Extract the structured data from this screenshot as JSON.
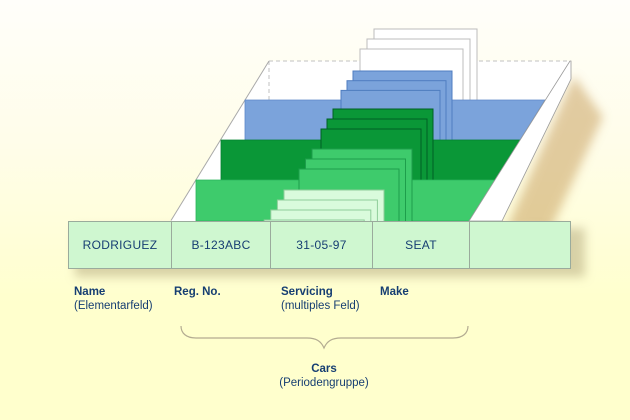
{
  "record": {
    "cells": [
      {
        "value": "RODRIGUEZ"
      },
      {
        "value": "B-123ABC"
      },
      {
        "value": "31-05-97"
      },
      {
        "value": "SEAT"
      },
      {
        "value": ""
      }
    ]
  },
  "field_labels": [
    {
      "title": "Name",
      "subtitle": "(Elementarfeld)"
    },
    {
      "title": "Reg. No.",
      "subtitle": ""
    },
    {
      "title": "Servicing",
      "subtitle": "(multiples Feld)"
    },
    {
      "title": "Make",
      "subtitle": ""
    }
  ],
  "group_label": {
    "title": "Cars",
    "subtitle": "(Periodengruppe)"
  },
  "colors": {
    "text": "#163e72",
    "record_fill": "#cff7d0",
    "record_border": "#9aab9c",
    "background_top": "#fffefa",
    "background_bottom": "#ffffcd",
    "tray_floor": "#ffffff",
    "tray_line": "#a9a9a9",
    "tray_dash": "#c2c2c2",
    "wall_fill": "#ffffff",
    "wall_stroke": "#9b9b9b",
    "wall_shadow": "#c49a55",
    "table_shadow": "#b0a478",
    "brace": "#b3ab91"
  },
  "diagram": {
    "stacks": [
      {
        "id": "white-cards",
        "cards": 3,
        "fill": "#ffffff",
        "stroke": "#bcbcbc"
      },
      {
        "id": "blue-cards",
        "cards": 3,
        "fill": "#7ba3db",
        "stroke": "#4f7dc0",
        "band": true,
        "band_stroke": "#5d88c9"
      },
      {
        "id": "dark-green-cards",
        "cards": 3,
        "fill": "#0a9737",
        "stroke": "#005f24",
        "band": true,
        "band_stroke": "#038231"
      },
      {
        "id": "mid-green-cards",
        "cards": 3,
        "fill": "#3ecb6c",
        "stroke": "#1d9e4b",
        "band": true,
        "band_stroke": "#2bb55b"
      },
      {
        "id": "light-green-cards",
        "cards": 4,
        "fill": "#d9fbdc",
        "stroke": "#8fce9a"
      }
    ]
  }
}
